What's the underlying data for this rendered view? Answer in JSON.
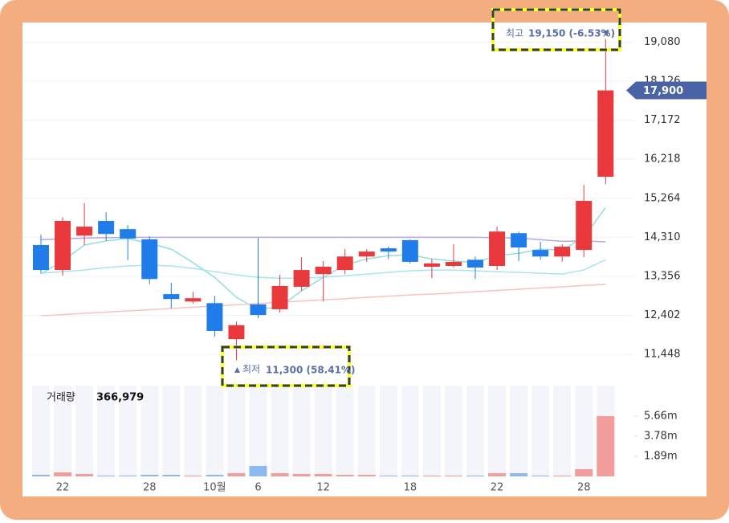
{
  "chart_data": {
    "type": "candlestick",
    "categories": [
      null,
      "22",
      null,
      null,
      null,
      "28",
      null,
      null,
      "10월",
      null,
      "6",
      null,
      null,
      "12",
      null,
      null,
      null,
      "18",
      null,
      null,
      null,
      "22",
      null,
      null,
      null,
      "28",
      null
    ],
    "open": [
      14120,
      13510,
      14350,
      14710,
      14510,
      14260,
      12920,
      12740,
      12700,
      11820,
      12670,
      12550,
      13100,
      13410,
      13510,
      13840,
      14040,
      14240,
      13590,
      13610,
      13760,
      13610,
      14410,
      14000,
      13840,
      14000,
      15790
    ],
    "close": [
      13510,
      14710,
      14570,
      14390,
      14280,
      13290,
      12800,
      12820,
      12020,
      12160,
      12410,
      13120,
      13510,
      13590,
      13840,
      13960,
      13960,
      13710,
      13670,
      13710,
      13570,
      14450,
      14060,
      13840,
      14080,
      15200,
      17900
    ],
    "high": [
      14370,
      14800,
      15140,
      14920,
      14610,
      14330,
      13200,
      12980,
      12880,
      12250,
      14290,
      13390,
      13820,
      13730,
      14020,
      14020,
      14080,
      14260,
      13780,
      14140,
      13840,
      14570,
      14450,
      14200,
      14140,
      15590,
      19150
    ],
    "low": [
      13430,
      13370,
      14120,
      14220,
      13750,
      13160,
      12570,
      12690,
      11880,
      11300,
      12330,
      12470,
      13000,
      12740,
      13410,
      13710,
      13780,
      13670,
      13310,
      13570,
      13290,
      13510,
      13730,
      13760,
      13710,
      13820,
      15610
    ],
    "up_color": "#e9393c",
    "down_color": "#1f7ce8",
    "ma_lines": [
      {
        "color": "#b3a7ea",
        "values": [
          14250,
          14270,
          14290,
          14300,
          14310,
          14310,
          14310,
          14310,
          14310,
          14310,
          14310,
          14310,
          14310,
          14310,
          14310,
          14310,
          14310,
          14310,
          14310,
          14310,
          14310,
          14300,
          14290,
          14250,
          14210,
          14220,
          14200
        ]
      },
      {
        "color": "#8fe0dc",
        "values": [
          13410,
          13730,
          14120,
          14220,
          14280,
          14160,
          14020,
          13690,
          13330,
          12840,
          12550,
          12610,
          13000,
          13330,
          13630,
          13780,
          13860,
          13880,
          13780,
          13730,
          13690,
          13860,
          13920,
          14020,
          14000,
          14310,
          15040
        ]
      },
      {
        "color": "#a9e3ee",
        "values": [
          13430,
          13470,
          13510,
          13570,
          13610,
          13630,
          13610,
          13550,
          13470,
          13390,
          13330,
          13310,
          13310,
          13330,
          13370,
          13410,
          13450,
          13490,
          13510,
          13510,
          13490,
          13470,
          13450,
          13430,
          13410,
          13510,
          13760
        ]
      },
      {
        "color": "#f7c3c3",
        "values": [
          12390,
          12420,
          12450,
          12480,
          12510,
          12540,
          12570,
          12600,
          12630,
          12660,
          12690,
          12720,
          12750,
          12780,
          12810,
          12840,
          12870,
          12900,
          12920,
          12950,
          12980,
          13010,
          13040,
          13070,
          13100,
          13130,
          13160
        ]
      }
    ],
    "ylim": [
      10880,
      19560
    ],
    "yticks": [
      {
        "value": 11448,
        "label": "11,448"
      },
      {
        "value": 12402,
        "label": "12,402"
      },
      {
        "value": 13356,
        "label": "13,356"
      },
      {
        "value": 14310,
        "label": "14,310"
      },
      {
        "value": 15264,
        "label": "15,264"
      },
      {
        "value": 16218,
        "label": "16,218"
      },
      {
        "value": 17172,
        "label": "17,172"
      },
      {
        "value": 18126,
        "label": "18,126"
      },
      {
        "value": 19080,
        "label": "19,080"
      }
    ],
    "current_price": {
      "value": 17900,
      "label": "17,900"
    },
    "high_note": {
      "prefix": "최고",
      "value": 19150,
      "label": "19,150 (-6.53%)"
    },
    "low_note": {
      "prefix": "최저",
      "value": 11300,
      "label": "11,300 (58.41%)"
    },
    "volume_title": "거래량",
    "volume_value": "366,979",
    "volume": [
      150000,
      380000,
      230000,
      80000,
      80000,
      150000,
      150000,
      80000,
      150000,
      300000,
      980000,
      300000,
      230000,
      230000,
      150000,
      150000,
      80000,
      80000,
      80000,
      80000,
      80000,
      300000,
      300000,
      80000,
      80000,
      680000,
      5670000
    ],
    "volume_ylim": [
      0,
      8540000
    ],
    "volume_yticks": [
      {
        "value": 1890000,
        "label": "1.89m"
      },
      {
        "value": 3780000,
        "label": "3.78m"
      },
      {
        "value": 5660000,
        "label": "5.66m"
      }
    ]
  }
}
